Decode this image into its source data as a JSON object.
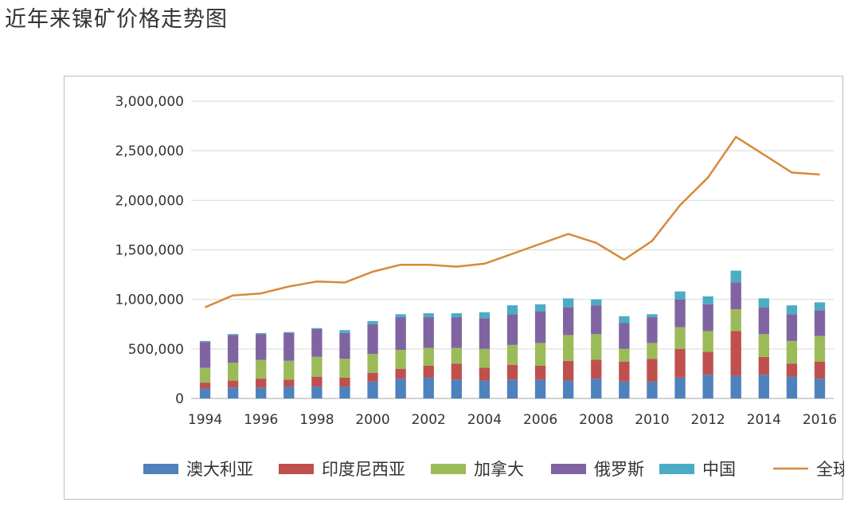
{
  "page": {
    "title": "近年来镍矿价格走势图"
  },
  "chart_data": {
    "type": "bar",
    "title": "",
    "xlabel": "",
    "ylabel": "",
    "ylim": [
      0,
      3000000
    ],
    "yticks": [
      0,
      500000,
      1000000,
      1500000,
      2000000,
      2500000,
      3000000
    ],
    "ytick_labels": [
      "0",
      "500,000",
      "1,000,000",
      "1,500,000",
      "2,000,000",
      "2,500,000",
      "3,000,000"
    ],
    "xtick_labels": [
      "1994",
      "1996",
      "1998",
      "2000",
      "2002",
      "2004",
      "2006",
      "2008",
      "2010",
      "2012",
      "2014",
      "2016"
    ],
    "grid": true,
    "legend_position": "bottom",
    "stacked": true,
    "categories": [
      "1994",
      "1995",
      "1996",
      "1997",
      "1998",
      "1999",
      "2000",
      "2001",
      "2002",
      "2003",
      "2004",
      "2005",
      "2006",
      "2007",
      "2008",
      "2009",
      "2010",
      "2011",
      "2012",
      "2013",
      "2014",
      "2015",
      "2016"
    ],
    "series": [
      {
        "name": "澳大利亚",
        "type": "bar",
        "color": "#4F81BD",
        "values": [
          100000,
          110000,
          110000,
          120000,
          120000,
          120000,
          170000,
          200000,
          210000,
          190000,
          180000,
          190000,
          190000,
          180000,
          200000,
          170000,
          170000,
          210000,
          240000,
          230000,
          240000,
          220000,
          200000
        ]
      },
      {
        "name": "印度尼西亚",
        "type": "bar",
        "color": "#C0504D",
        "values": [
          60000,
          70000,
          90000,
          70000,
          100000,
          90000,
          90000,
          100000,
          120000,
          160000,
          130000,
          150000,
          140000,
          200000,
          190000,
          200000,
          230000,
          290000,
          230000,
          450000,
          180000,
          130000,
          170000
        ]
      },
      {
        "name": "加拿大",
        "type": "bar",
        "color": "#9BBB59",
        "values": [
          150000,
          180000,
          190000,
          190000,
          200000,
          190000,
          190000,
          190000,
          180000,
          160000,
          190000,
          200000,
          230000,
          260000,
          260000,
          130000,
          160000,
          220000,
          210000,
          220000,
          230000,
          230000,
          260000
        ]
      },
      {
        "name": "俄罗斯",
        "type": "bar",
        "color": "#8064A2",
        "values": [
          260000,
          280000,
          260000,
          280000,
          280000,
          260000,
          300000,
          330000,
          310000,
          310000,
          310000,
          310000,
          320000,
          280000,
          290000,
          260000,
          260000,
          280000,
          270000,
          270000,
          270000,
          270000,
          260000
        ]
      },
      {
        "name": "中国",
        "type": "bar",
        "color": "#4BACC6",
        "values": [
          10000,
          10000,
          10000,
          10000,
          10000,
          30000,
          30000,
          30000,
          40000,
          40000,
          60000,
          90000,
          70000,
          90000,
          60000,
          70000,
          30000,
          80000,
          80000,
          120000,
          90000,
          90000,
          80000
        ]
      },
      {
        "name": "全球",
        "type": "line",
        "color": "#D7893A",
        "values": [
          920000,
          1040000,
          1060000,
          1130000,
          1180000,
          1170000,
          1280000,
          1350000,
          1350000,
          1330000,
          1360000,
          1460000,
          1560000,
          1660000,
          1570000,
          1400000,
          1590000,
          1950000,
          2230000,
          2640000,
          2460000,
          2280000,
          2260000
        ]
      }
    ]
  }
}
